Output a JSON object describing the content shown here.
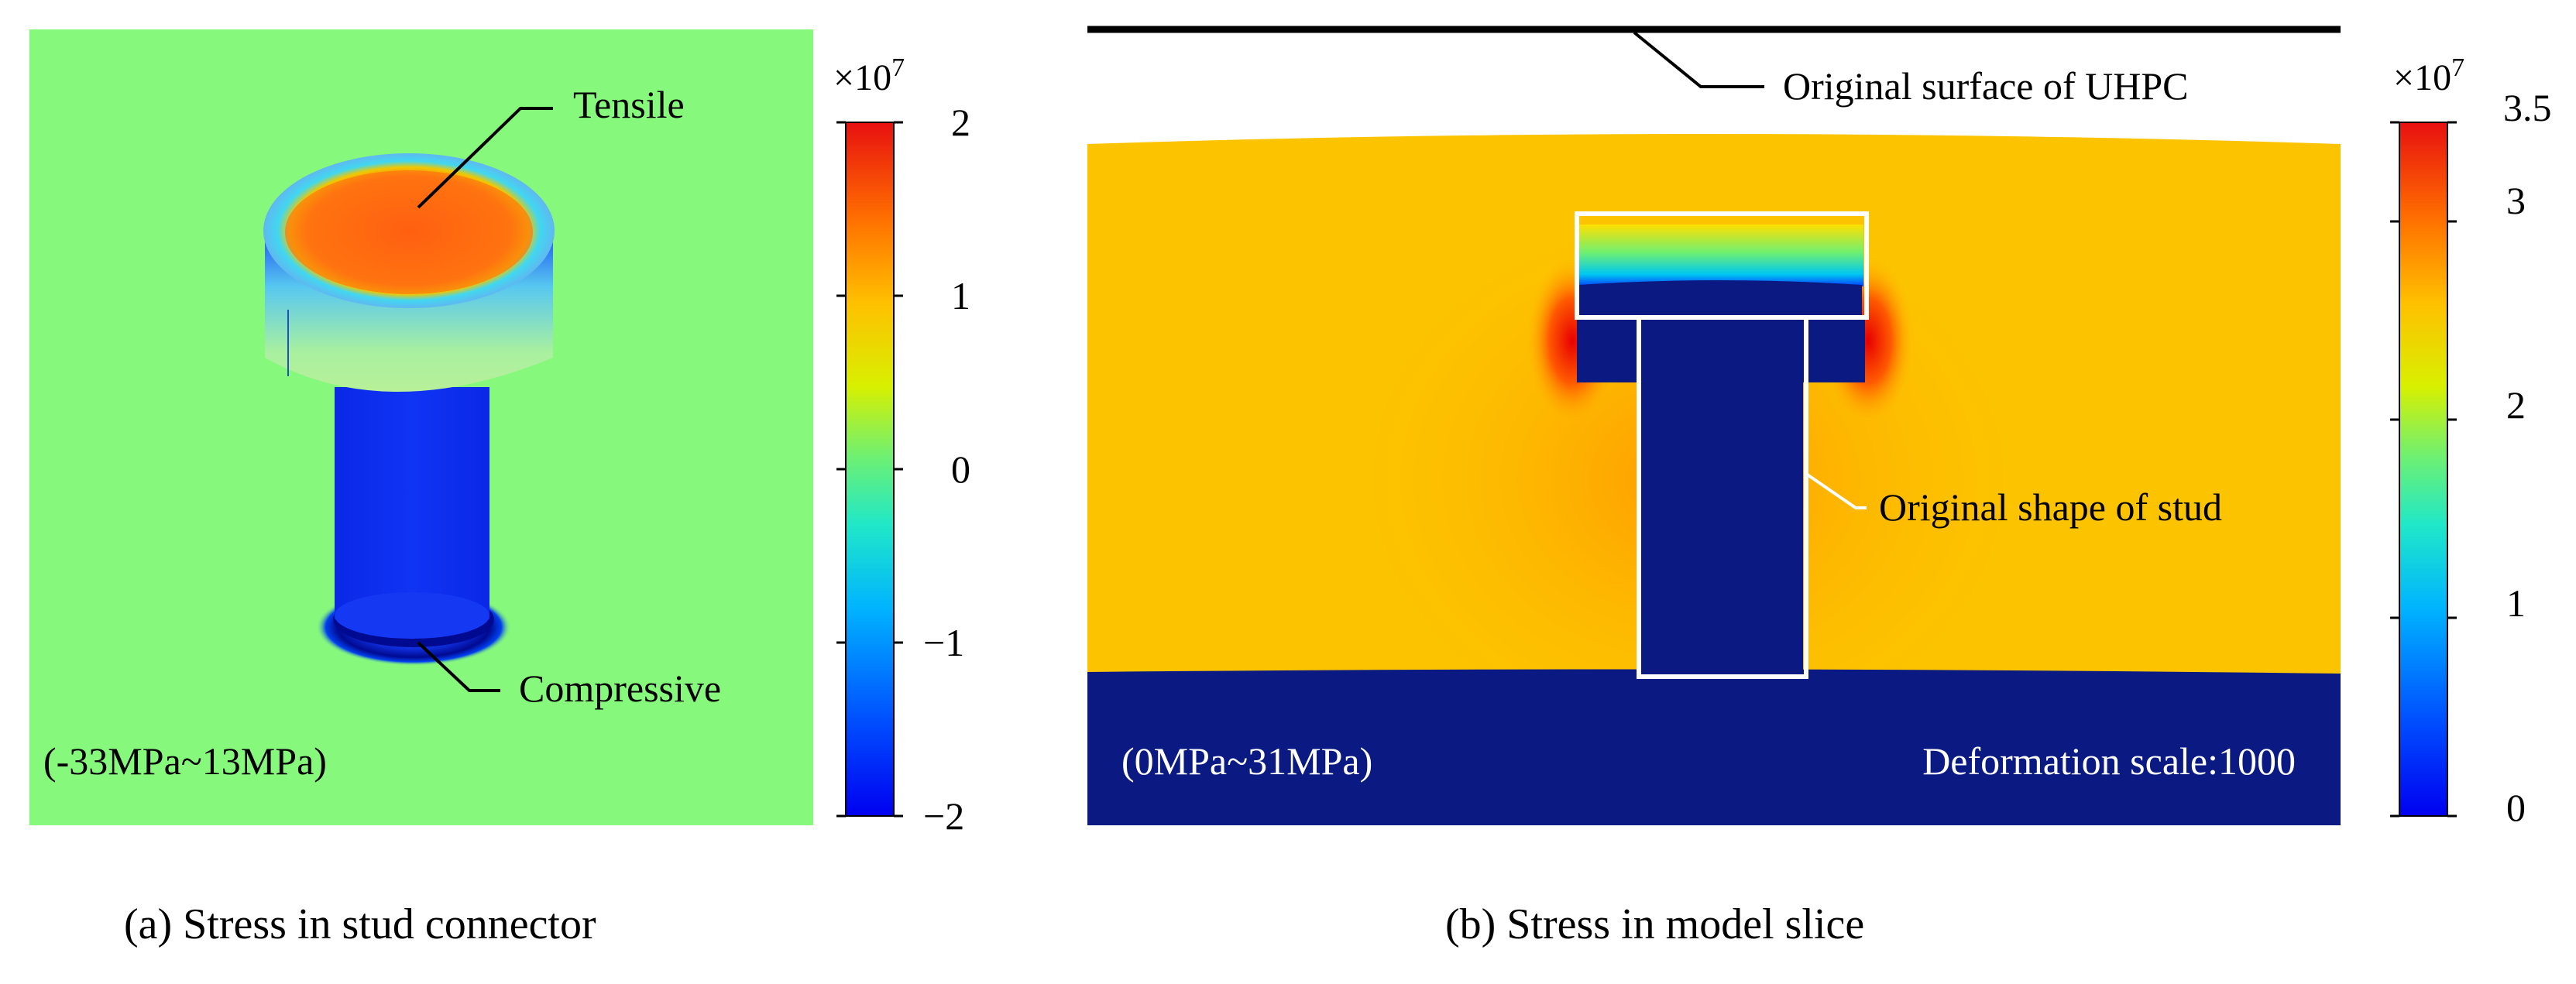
{
  "panel_a": {
    "caption": "(a) Stress in stud connector",
    "range_label": "(-33MPa~13MPa)",
    "annotations": {
      "tensile": "Tensile",
      "compressive": "Compressive"
    },
    "colorbar": {
      "exponent_base": "×10",
      "exponent_power": "7",
      "ticks": [
        "2",
        "1",
        "0",
        "−1",
        "−2"
      ],
      "min": -2,
      "max": 2
    },
    "background_color": "#86f87c"
  },
  "panel_b": {
    "caption": "(b) Stress in model slice",
    "range_label": "(0MPa~31MPa)",
    "deformation_label": "Deformation scale:1000",
    "annotations": {
      "original_surface": "Original surface of UHPC",
      "original_shape": "Original shape of stud"
    },
    "colorbar": {
      "exponent_base": "×10",
      "exponent_power": "7",
      "ticks": [
        "3.5",
        "3",
        "2",
        "1",
        "0"
      ],
      "min": 0,
      "max": 3.5
    },
    "base_color": "#0a1a82"
  },
  "colormap_stops": [
    "#0000ff",
    "#0080ff",
    "#00e0e0",
    "#5cf080",
    "#e8f000",
    "#ffb000",
    "#ff6000",
    "#e00000"
  ]
}
